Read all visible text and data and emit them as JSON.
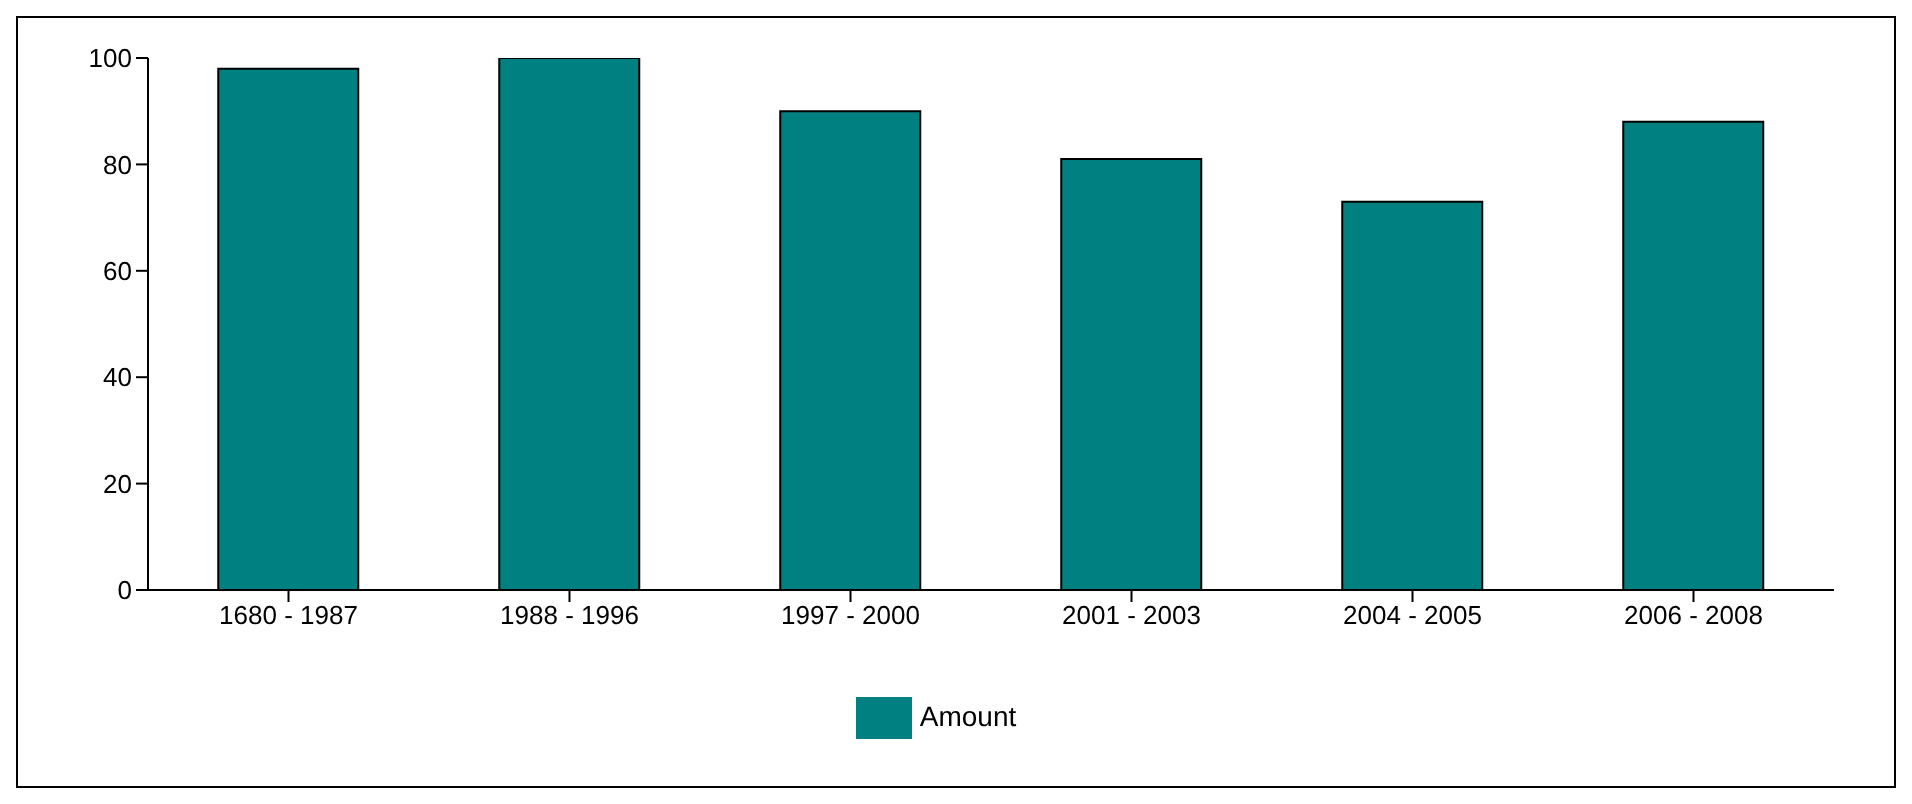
{
  "chart_data": {
    "type": "bar",
    "categories": [
      "1680 - 1987",
      "1988 - 1996",
      "1997 - 2000",
      "2001 - 2003",
      "2004 - 2005",
      "2006 - 2008"
    ],
    "series": [
      {
        "name": "Amount",
        "color": "#008080",
        "values": [
          98,
          100,
          90,
          81,
          73,
          88
        ]
      }
    ],
    "ylim": [
      0,
      100
    ],
    "yticks": [
      0,
      20,
      40,
      60,
      80,
      100
    ],
    "grid": false,
    "legend": "bottom"
  }
}
